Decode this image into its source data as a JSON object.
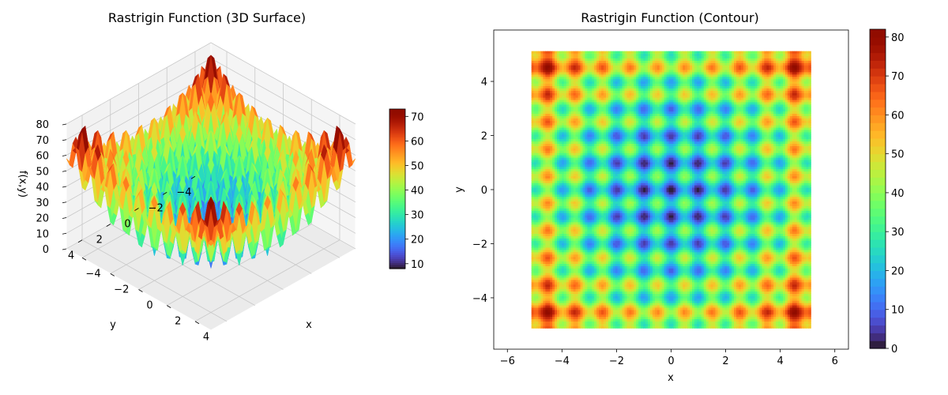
{
  "chart_data": [
    {
      "type": "surface",
      "title": "Rastrigin Function (3D Surface)",
      "xlabel": "x",
      "ylabel": "y",
      "zlabel": "f(x,y)",
      "function": "Rastrigin: f(x,y) = 20 + x^2 - 10cos(2πx) + y^2 - 10cos(2πy)",
      "xlim": [
        -5.12,
        5.12
      ],
      "ylim": [
        -5.12,
        5.12
      ],
      "zlim": [
        0,
        80
      ],
      "x_ticks": [
        "−4",
        "−2",
        "0",
        "2",
        "4"
      ],
      "y_ticks": [
        "−4",
        "−2",
        "0",
        "2",
        "4"
      ],
      "z_ticks": [
        "0",
        "10",
        "20",
        "30",
        "40",
        "50",
        "60",
        "70",
        "80"
      ],
      "colormap": "turbo",
      "colorbar": {
        "min": 8,
        "max": 73,
        "ticks": [
          "10",
          "20",
          "30",
          "40",
          "50",
          "60",
          "70"
        ]
      },
      "view": {
        "elevation_deg": 30,
        "azimuth_deg": 45
      },
      "grid": true
    },
    {
      "type": "heatmap",
      "title": "Rastrigin Function (Contour)",
      "xlabel": "x",
      "ylabel": "y",
      "function": "Rastrigin: f(x,y) = 20 + x^2 - 10cos(2πx) + y^2 - 10cos(2πy)",
      "data_range": [
        -5.12,
        5.12
      ],
      "xlim": [
        -6.5,
        6.5
      ],
      "ylim": [
        -5.9,
        5.9
      ],
      "x_ticks": [
        "−6",
        "−4",
        "−2",
        "0",
        "2",
        "4",
        "6"
      ],
      "y_ticks": [
        "−4",
        "−2",
        "0",
        "2",
        "4"
      ],
      "colormap": "turbo",
      "levels": 41,
      "colorbar": {
        "min": 0,
        "max": 82,
        "ticks": [
          "0",
          "10",
          "20",
          "30",
          "40",
          "50",
          "60",
          "70",
          "80"
        ]
      },
      "grid": false
    }
  ]
}
